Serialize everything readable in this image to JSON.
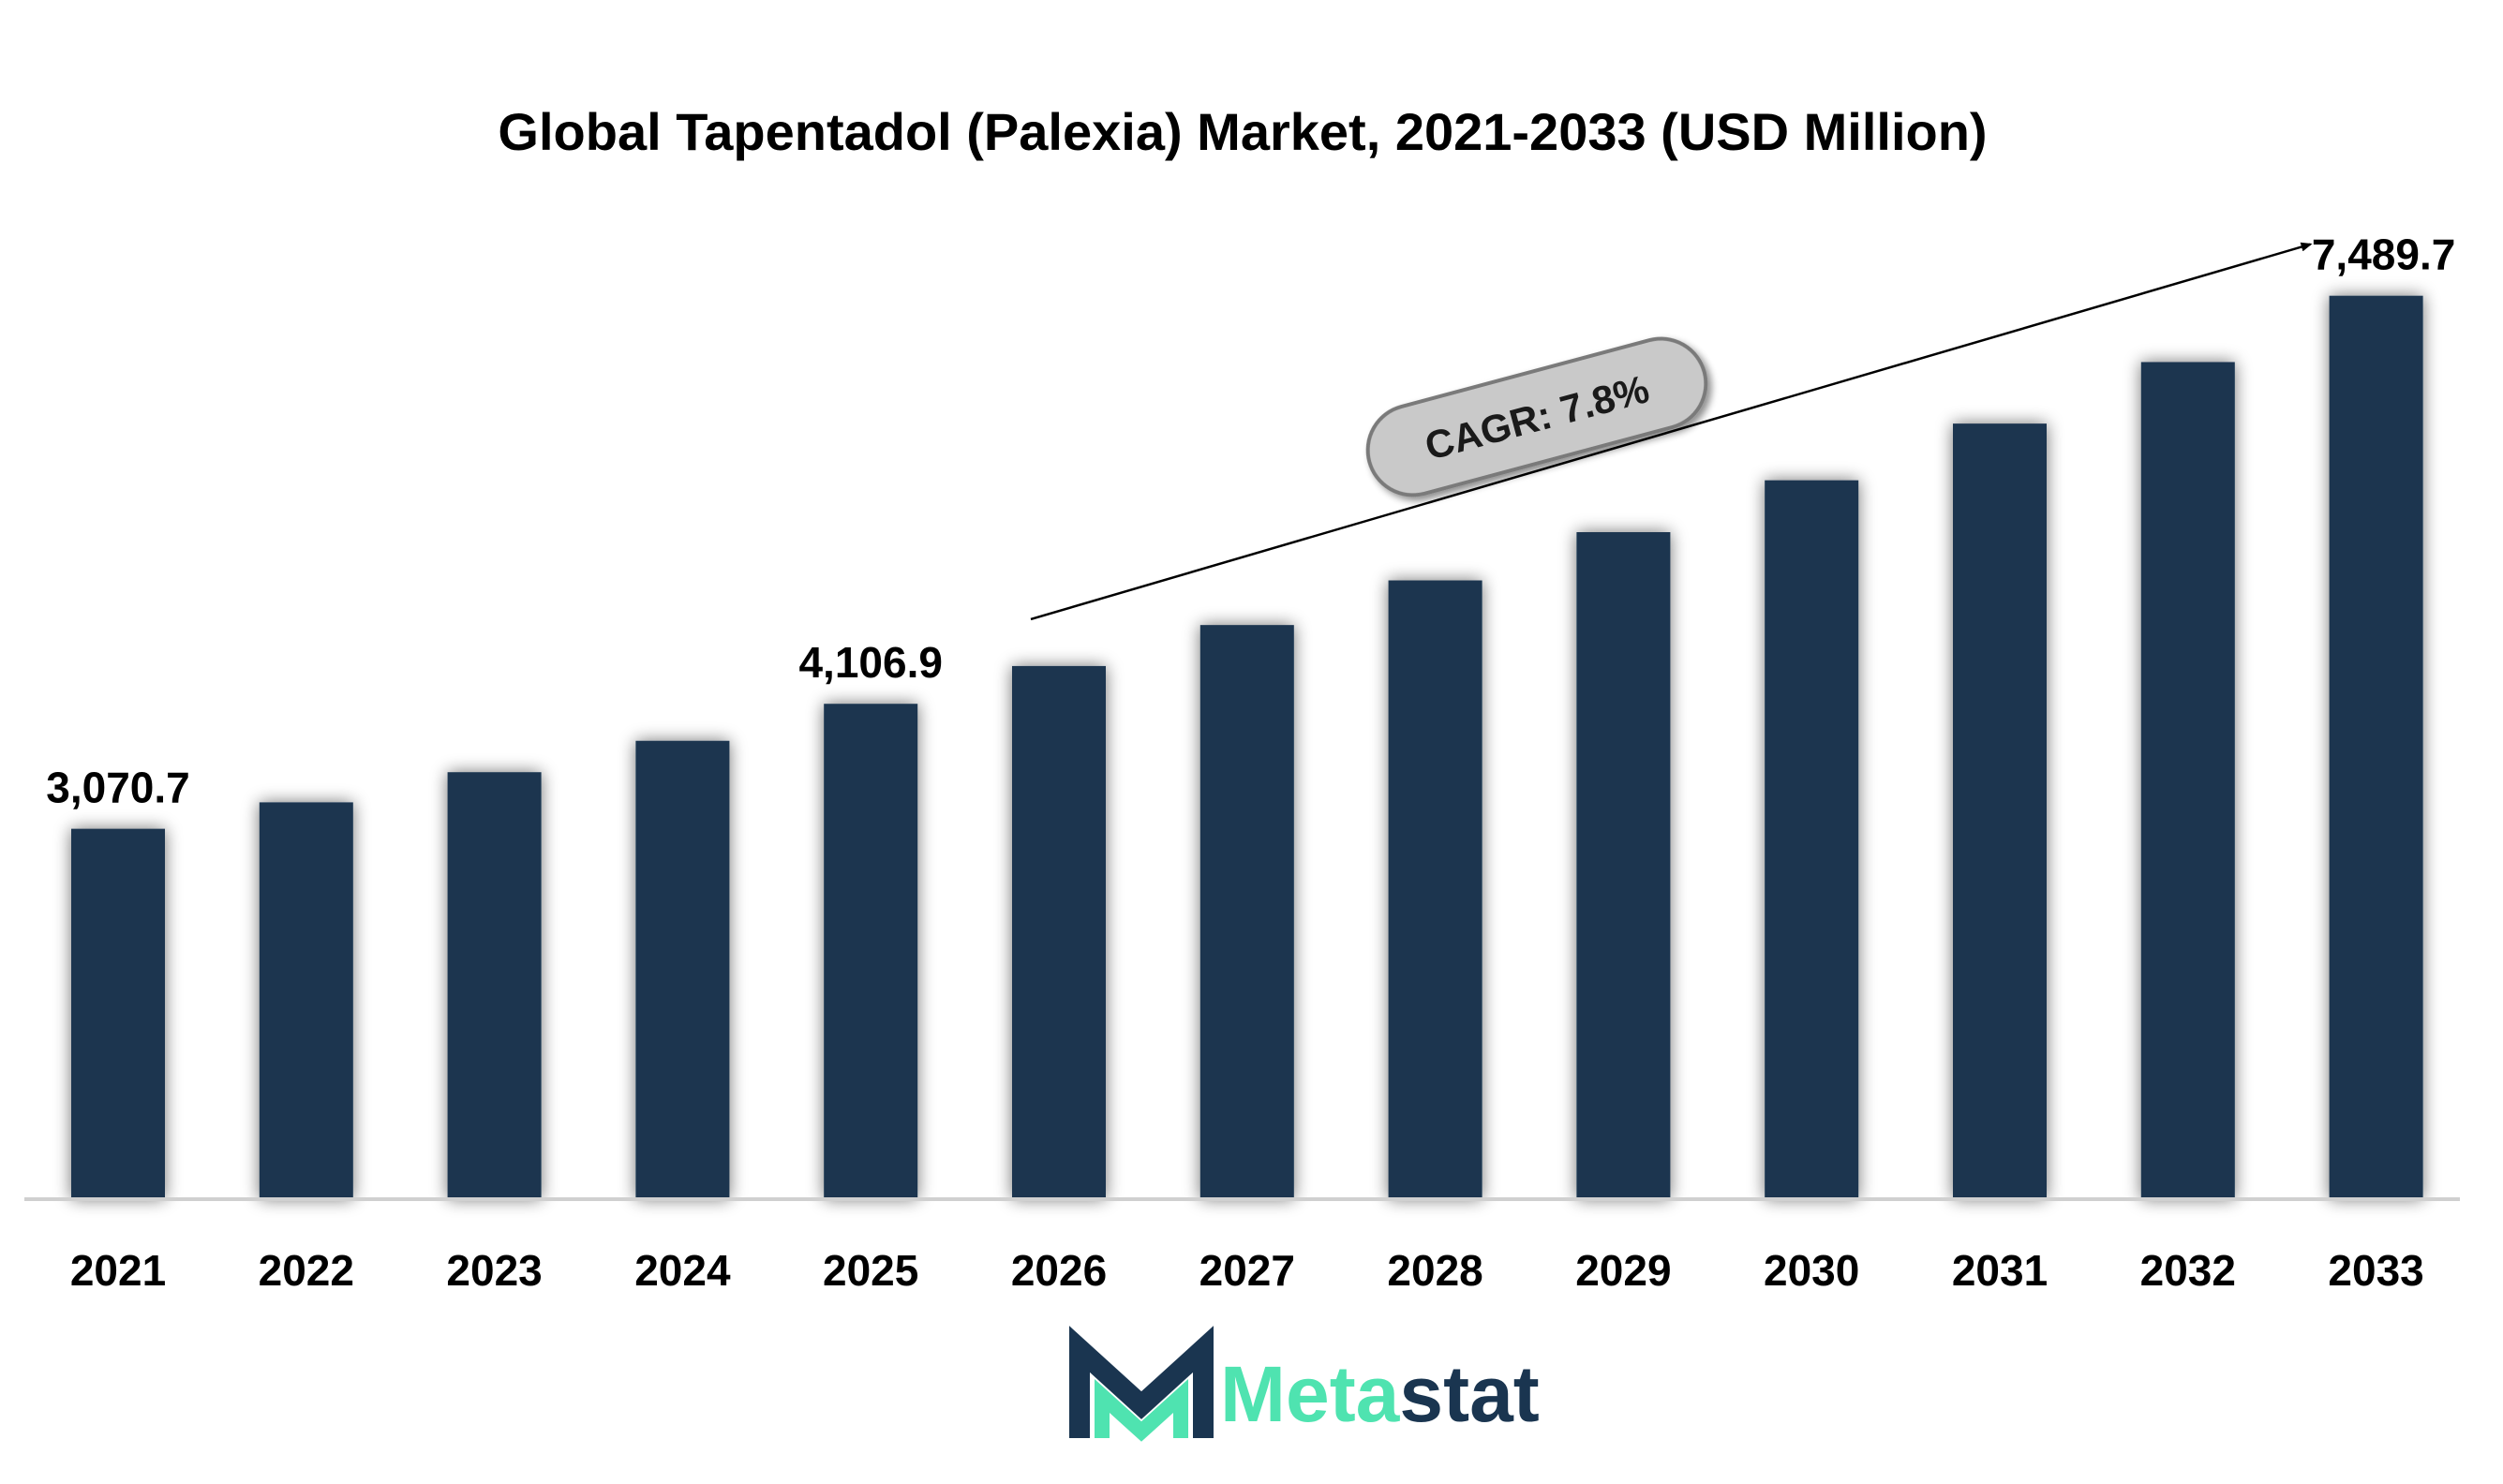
{
  "chart_data": {
    "type": "bar",
    "title": "Global Tapentadol (Palexia) Market, 2021-2033 (USD Million)",
    "categories": [
      "2021",
      "2022",
      "2023",
      "2024",
      "2025",
      "2026",
      "2027",
      "2028",
      "2029",
      "2030",
      "2031",
      "2032",
      "2033"
    ],
    "values": [
      3070.7,
      3290,
      3540,
      3800,
      4106.9,
      4420,
      4760,
      5130,
      5530,
      5960,
      6430,
      6940,
      7489.7
    ],
    "data_labels": {
      "2021": "3,070.7",
      "2025": "4,106.9",
      "2033": "7,489.7"
    },
    "ylim": [
      0,
      8000
    ],
    "xlabel": "",
    "ylabel": "",
    "grid": false,
    "legend": "none",
    "bar_color": "#1a3550",
    "annotation": {
      "text": "CAGR: 7.8%",
      "from_category": "2026",
      "to_category": "2033"
    }
  },
  "branding": {
    "logo_part1": "Meta",
    "logo_part2": "stat",
    "logo_color_1": "#4fe3b0",
    "logo_color_2": "#1a3550"
  }
}
